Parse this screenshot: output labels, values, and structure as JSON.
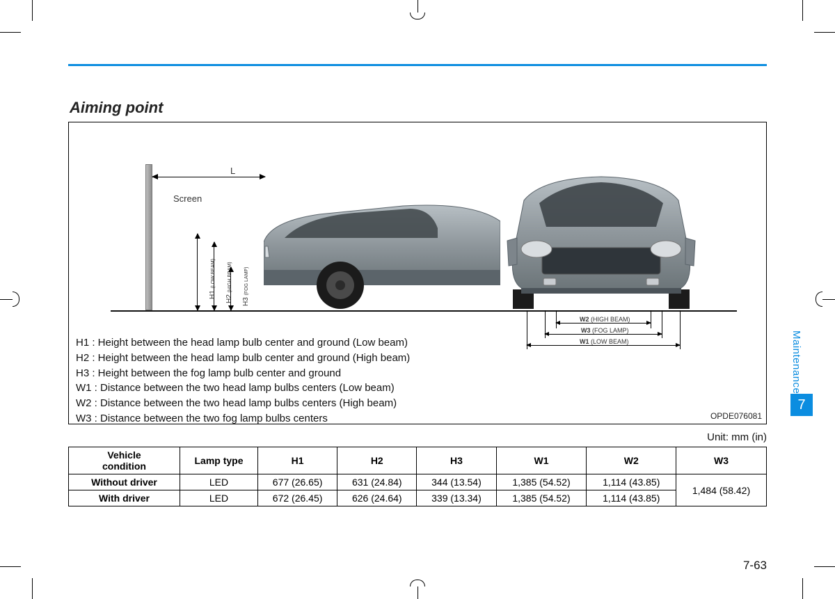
{
  "section": {
    "name": "Maintenance",
    "number": "7"
  },
  "heading": "Aiming point",
  "figure": {
    "screen_label": "Screen",
    "L_label": "L",
    "h_dims": [
      {
        "code": "H1",
        "sub": "(LOW BEAM)"
      },
      {
        "code": "H2",
        "sub": "(HIGH BEAM)"
      },
      {
        "code": "H3",
        "sub": "(FOG LAMP)"
      }
    ],
    "w_dims": [
      {
        "code": "W2",
        "sub": "(HIGH BEAM)"
      },
      {
        "code": "W3",
        "sub": "(FOG LAMP)"
      },
      {
        "code": "W1",
        "sub": "(LOW BEAM)"
      }
    ],
    "definitions": [
      "H1 : Height between the head lamp bulb center and ground (Low beam)",
      "H2 : Height between the head lamp bulb center and ground (High beam)",
      "H3 : Height between the fog lamp bulb center and ground",
      "W1 : Distance between the two head lamp bulbs centers (Low beam)",
      "W2 : Distance between the two head lamp bulbs centers (High beam)",
      "W3 : Distance between the two fog lamp bulbs centers"
    ],
    "code": "OPDE076081"
  },
  "unit_label": "Unit: mm (in)",
  "table": {
    "columns": [
      "Vehicle condition",
      "Lamp type",
      "H1",
      "H2",
      "H3",
      "W1",
      "W2",
      "W3"
    ],
    "rows": [
      [
        "Without driver",
        "LED",
        "677 (26.65)",
        "631 (24.84)",
        "344 (13.54)",
        "1,385 (54.52)",
        "1,114 (43.85)"
      ],
      [
        "With driver",
        "LED",
        "672 (26.45)",
        "626 (24.64)",
        "339 (13.34)",
        "1,385 (54.52)",
        "1,114 (43.85)"
      ]
    ],
    "w3_merged": "1,484 (58.42)"
  },
  "page_number": "7-63",
  "colors": {
    "accent": "#0b8de0",
    "text": "#111111",
    "car_body": "#8f979c",
    "car_body_dark": "#6c7579",
    "wheel": "#1b1b1b",
    "background": "#ffffff"
  }
}
